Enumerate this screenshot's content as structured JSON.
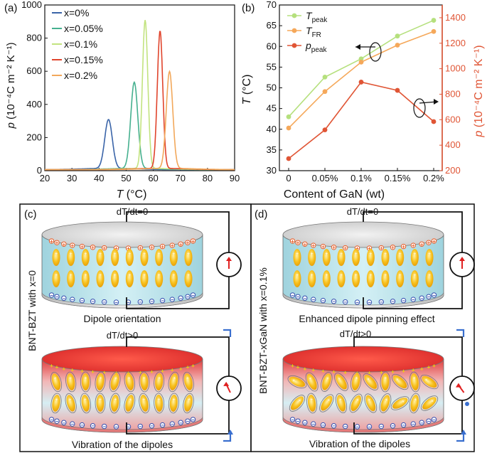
{
  "colors": {
    "s0": "#3a64a8",
    "s005": "#45b08f",
    "s01": "#c2e37f",
    "s015": "#e0442c",
    "s02": "#f2a85b",
    "tpeak": "#b5e07d",
    "tfr": "#f5a85a",
    "ppeak": "#e05535",
    "axis_right": "#e05535",
    "cyl_blue": "#bde4ec",
    "cyl_red": "#e23030",
    "dipole": "#f6b820",
    "plus": "#e8602c",
    "minus": "#3650b0",
    "arrow_blue": "#3a6fcf"
  },
  "chart_data": [
    {
      "type": "line",
      "panel_label": "(a)",
      "xlabel_italic": "T",
      "xlabel_unit": " (°C)",
      "ylabel_italic": "p",
      "ylabel_unit": " (10⁻⁴C m⁻² K⁻¹)",
      "xlim": [
        20,
        90
      ],
      "ylim": [
        0,
        1000
      ],
      "xticks": [
        "20",
        "30",
        "40",
        "50",
        "60",
        "70",
        "80",
        "90"
      ],
      "yticks": [
        "0",
        "200",
        "400",
        "600",
        "800",
        "1000"
      ],
      "legend_position": "top-left",
      "series": [
        {
          "name": "x=0%",
          "color_key": "s0",
          "center": 43.5,
          "peak": 295,
          "width": 1.4
        },
        {
          "name": "x=0.05%",
          "color_key": "s005",
          "center": 53.0,
          "peak": 520,
          "width": 1.3
        },
        {
          "name": "x=0.1%",
          "color_key": "s01",
          "center": 57.0,
          "peak": 895,
          "width": 1.0
        },
        {
          "name": "x=0.15%",
          "color_key": "s015",
          "center": 62.5,
          "peak": 830,
          "width": 1.0
        },
        {
          "name": "x=0.2%",
          "color_key": "s02",
          "center": 66.0,
          "peak": 585,
          "width": 1.2
        }
      ]
    },
    {
      "type": "line",
      "panel_label": "(b)",
      "xlabel": "Content of GaN (wt)",
      "categories": [
        "0",
        "0.05%",
        "0.1%",
        "0.15%",
        "0.2%"
      ],
      "ylabel_left_italic": "T",
      "ylabel_left_unit": " (°C)",
      "ylim_left": [
        30,
        70
      ],
      "yticks_left": [
        "30",
        "35",
        "40",
        "45",
        "50",
        "55",
        "60",
        "65",
        "70"
      ],
      "ylabel_right_italic": "p",
      "ylabel_right_unit": " (10⁻⁴C m⁻² K⁻¹)",
      "ylim_right": [
        200,
        1500
      ],
      "yticks_right": [
        "200",
        "400",
        "600",
        "800",
        "1000",
        "1200",
        "1400"
      ],
      "legend_position": "top-left",
      "series": [
        {
          "name": "T",
          "sub": "peak",
          "color_key": "tpeak",
          "axis": "left",
          "values": [
            43,
            52.6,
            57,
            62.5,
            66.3
          ]
        },
        {
          "name": "T",
          "sub": "FR",
          "color_key": "tfr",
          "axis": "left",
          "values": [
            40.3,
            49.1,
            56.2,
            60.3,
            63.6
          ]
        },
        {
          "name": "p",
          "sub": "peak",
          "color_key": "ppeak",
          "axis": "right",
          "values": [
            295,
            520,
            895,
            830,
            585
          ]
        }
      ]
    }
  ],
  "panel_c": {
    "label": "(c)",
    "side_label": "BNT-BZT with x=0",
    "top_condition": "dT/dt=0",
    "top_caption": "Dipole orientation",
    "bottom_condition": "dT/dt>0",
    "bottom_caption": "Vibration of the dipoles"
  },
  "panel_d": {
    "label": "(d)",
    "side_label": "BNT-BZT-xGaN with x=0.1%",
    "top_condition": "dT/dt=0",
    "top_caption": "Enhanced dipole pinning effect",
    "bottom_condition": "dT/dt>0",
    "bottom_caption": "Vibration of the dipoles"
  },
  "symbols": {
    "plus": "+",
    "minus": "−"
  }
}
